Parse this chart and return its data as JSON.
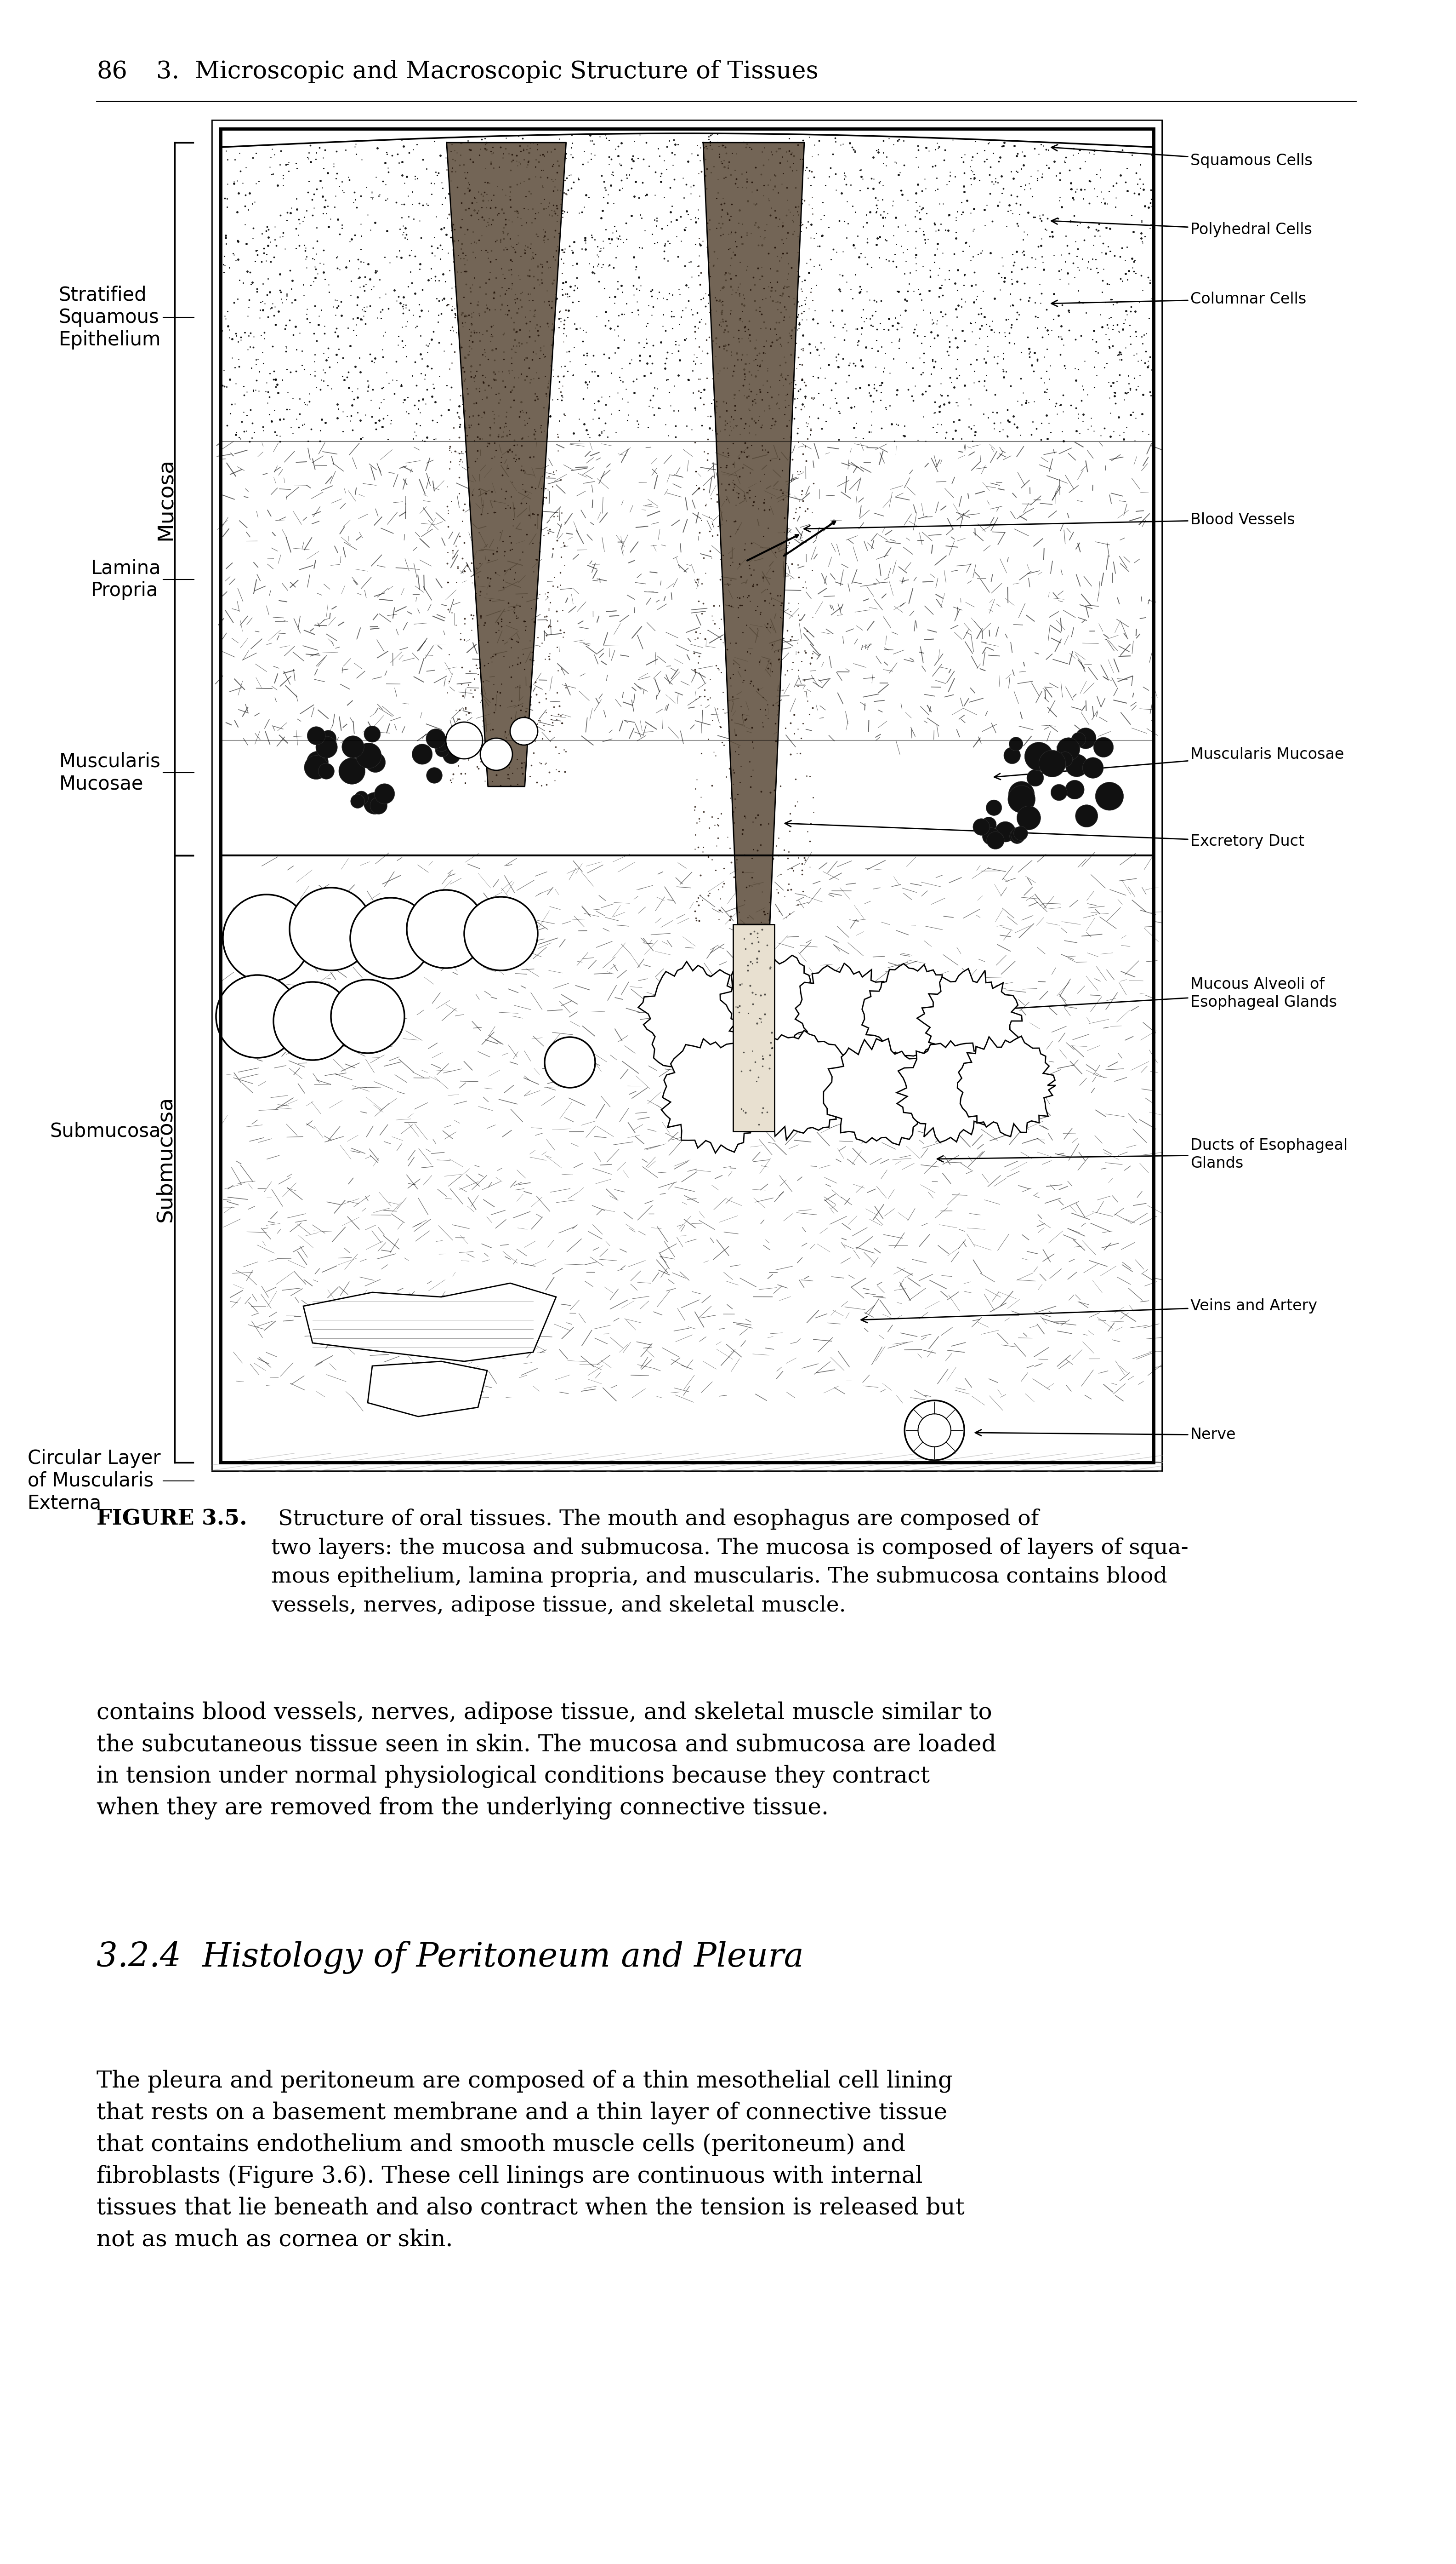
{
  "page_header_num": "86",
  "page_header_title": "3.  Microscopic and Macroscopic Structure of Tissues",
  "figure_caption_bold": "FIGURE 3.5.",
  "figure_caption_rest": " Structure of oral tissues. The mouth and esophagus are composed of two layers: the mucosa and submucosa. The mucosa is composed of layers of squamous epithelium, lamina propria, and muscularis. The submucosa contains blood vessels, nerves, adipose tissue, and skeletal muscle.",
  "body_text_1": "contains blood vessels, nerves, adipose tissue, and skeletal muscle similar to the subcutaneous tissue seen in skin. The mucosa and submucosa are loaded in tension under normal physiological conditions because they contract when they are removed from the underlying connective tissue.",
  "section_heading": "3.2.4  Histology of Peritoneum and Pleura",
  "body_text_2": "The pleura and peritoneum are composed of a thin mesothelial cell lining that rests on a basement membrane and a thin layer of connective tissue that contains endothelium and smooth muscle cells (peritoneum) and fibroblasts (Figure 3.6). These cell linings are continuous with internal tissues that lie beneath and also contract when the tension is released but not as much as cornea or skin.",
  "bg_color": "#ffffff",
  "text_color": "#000000"
}
